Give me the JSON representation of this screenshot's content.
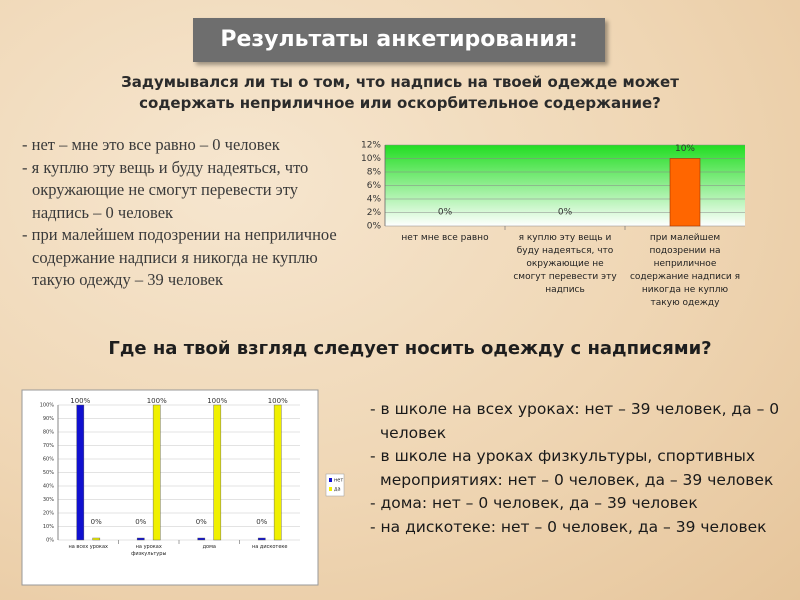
{
  "title": "Результаты анкетирования:",
  "question1": "Задумывался ли ты о том, что надпись на твоей одежде может содержать неприличное или оскорбительное содержание?",
  "answers1": [
    "- нет – мне это все равно – 0 человек",
    "- я куплю эту вещь и буду надеяться, что окружающие не смогут перевести эту надпись – 0 человек",
    "- при малейшем подозрении на неприличное содержание надписи я никогда не куплю такую одежду – 39 человек"
  ],
  "question2": "Где на твой взгляд следует носить одежду с надписями?",
  "answers2": [
    "-  в школе на всех уроках: нет – 39 человек, да – 0 человек",
    "- в школе на уроках физкультуры, спортивных мероприятиях: нет – 0 человек, да – 39 человек",
    "- дома: нет – 0 человек, да – 39 человек",
    "- на дискотеке: нет – 0 человек, да – 39 человек"
  ],
  "chart_data": [
    {
      "type": "bar",
      "categories": [
        "нет   мне все равно",
        "я куплю эту вещь и буду надеяться, что окружающие не смогут перевести эту надпись",
        "при малейшем подозрении на неприличное содержание надписи я никогда не куплю такую одежду"
      ],
      "values": [
        0,
        0,
        10
      ],
      "value_labels": [
        "0%",
        "0%",
        "10%"
      ],
      "color": "#ff6600",
      "ylim": [
        0,
        12
      ],
      "yticks": [
        {
          "value": 0,
          "label": "0%"
        },
        {
          "value": 2,
          "label": "2%"
        },
        {
          "value": 4,
          "label": "4%"
        },
        {
          "value": 6,
          "label": "6%"
        },
        {
          "value": 8,
          "label": "8%"
        },
        {
          "value": 10,
          "label": "10%"
        },
        {
          "value": 12,
          "label": "12%"
        }
      ],
      "grid": true
    },
    {
      "type": "grouped_bar",
      "categories": [
        "на всех уроках",
        "на уроках физкультуры",
        "дома",
        "на дискотеке"
      ],
      "series": [
        {
          "name": "нет",
          "color": "#1010d0",
          "values": [
            100,
            0,
            0,
            0
          ],
          "value_labels": [
            "100%",
            "0%",
            "0%",
            "0%"
          ]
        },
        {
          "name": "да",
          "color": "#f0f000",
          "values": [
            0,
            100,
            100,
            100
          ],
          "value_labels": [
            "0%",
            "100%",
            "100%",
            "100%"
          ]
        }
      ],
      "ylim": [
        0,
        100
      ],
      "yticks": [
        {
          "value": 0,
          "label": "0%"
        },
        {
          "value": 10,
          "label": "10%"
        },
        {
          "value": 20,
          "label": "20%"
        },
        {
          "value": 30,
          "label": "30%"
        },
        {
          "value": 40,
          "label": "40%"
        },
        {
          "value": 50,
          "label": "50%"
        },
        {
          "value": 60,
          "label": "60%"
        },
        {
          "value": 70,
          "label": "70%"
        },
        {
          "value": 80,
          "label": "80%"
        },
        {
          "value": 90,
          "label": "90%"
        },
        {
          "value": 100,
          "label": "100%"
        }
      ],
      "grid": true,
      "legend": "right"
    }
  ]
}
